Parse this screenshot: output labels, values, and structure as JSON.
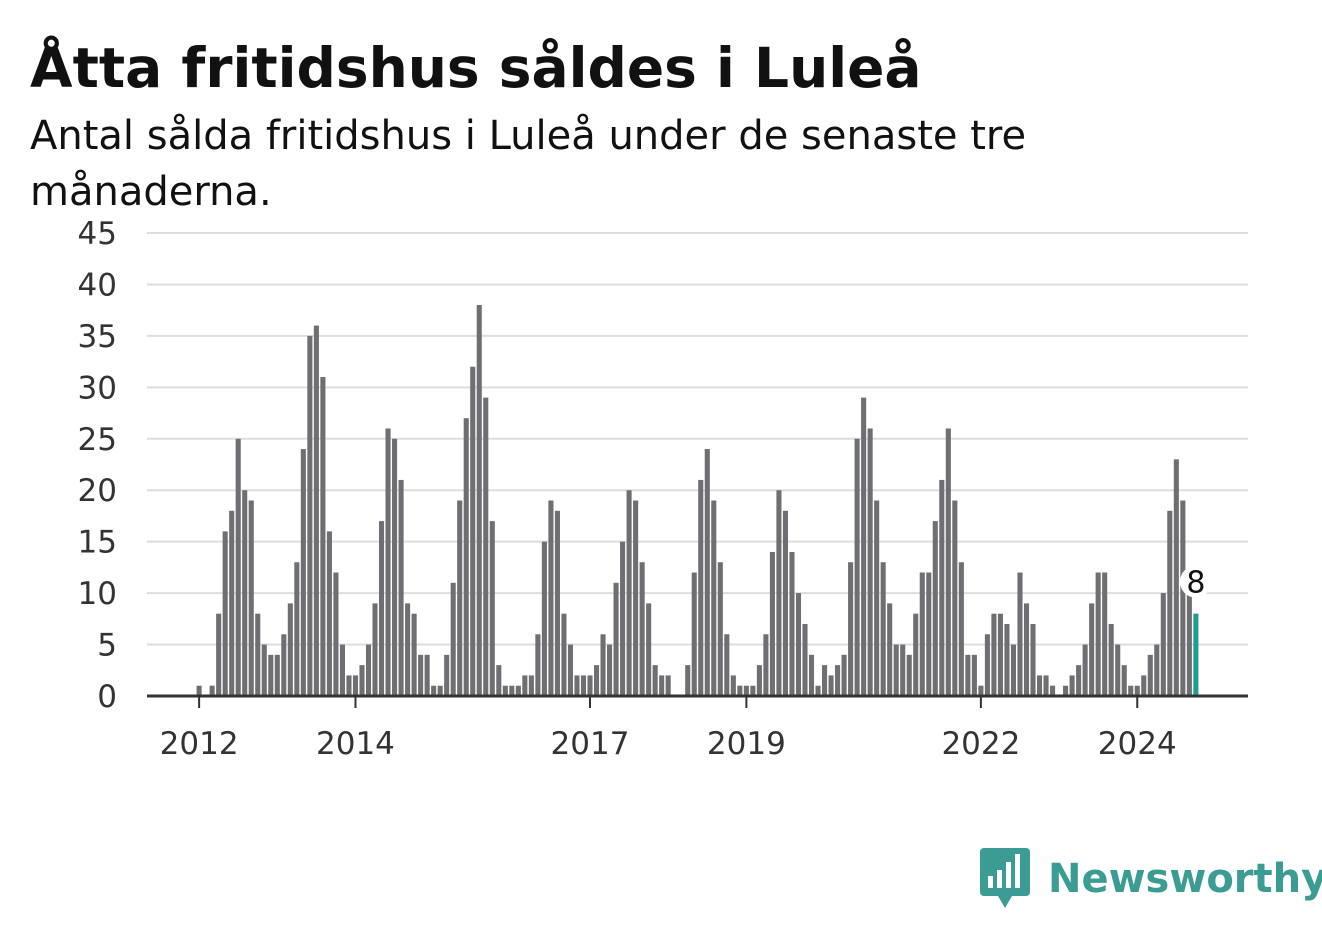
{
  "title": "Åtta fritidshus såldes i Luleå",
  "subtitle": "Antal sålda fritidshus i Luleå under de senaste tre månaderna.",
  "brand": "Newsworthy",
  "colors": {
    "bar": "#6e6e73",
    "highlight": "#1f9b91",
    "grid": "#dddddd",
    "axis": "#333333",
    "brand": "#3a9c92"
  },
  "chart_data": {
    "type": "bar",
    "title": "Åtta fritidshus såldes i Luleå",
    "subtitle": "Antal sålda fritidshus i Luleå under de senaste tre månaderna.",
    "x_start": "2011-05",
    "x_end": "2025-06",
    "xticks": [
      "2012",
      "2014",
      "2017",
      "2019",
      "2022",
      "2024"
    ],
    "ylim": [
      0,
      45
    ],
    "yticks": [
      0,
      5,
      10,
      15,
      20,
      25,
      30,
      35,
      40,
      45
    ],
    "grid": true,
    "first_month": "2012-01",
    "values": [
      1,
      0,
      1,
      8,
      16,
      18,
      25,
      20,
      19,
      8,
      5,
      4,
      4,
      6,
      9,
      13,
      24,
      35,
      36,
      31,
      16,
      12,
      5,
      2,
      2,
      3,
      5,
      9,
      17,
      26,
      25,
      21,
      9,
      8,
      4,
      4,
      1,
      1,
      4,
      11,
      19,
      27,
      32,
      38,
      29,
      17,
      3,
      1,
      1,
      1,
      2,
      2,
      6,
      15,
      19,
      18,
      8,
      5,
      2,
      2,
      2,
      3,
      6,
      5,
      11,
      15,
      20,
      19,
      13,
      9,
      3,
      2,
      2,
      0,
      0,
      3,
      12,
      21,
      24,
      19,
      13,
      6,
      2,
      1,
      1,
      1,
      3,
      6,
      14,
      20,
      18,
      14,
      10,
      7,
      4,
      1,
      3,
      2,
      3,
      4,
      13,
      25,
      29,
      26,
      19,
      13,
      9,
      5,
      5,
      4,
      8,
      12,
      12,
      17,
      21,
      26,
      19,
      13,
      4,
      4,
      1,
      6,
      8,
      8,
      7,
      5,
      12,
      9,
      7,
      2,
      2,
      1,
      0,
      1,
      2,
      3,
      5,
      9,
      12,
      12,
      7,
      5,
      3,
      1,
      1,
      2,
      4,
      5,
      10,
      18,
      23,
      19,
      10,
      8
    ],
    "highlight_last": true,
    "last_value_label": "8"
  }
}
